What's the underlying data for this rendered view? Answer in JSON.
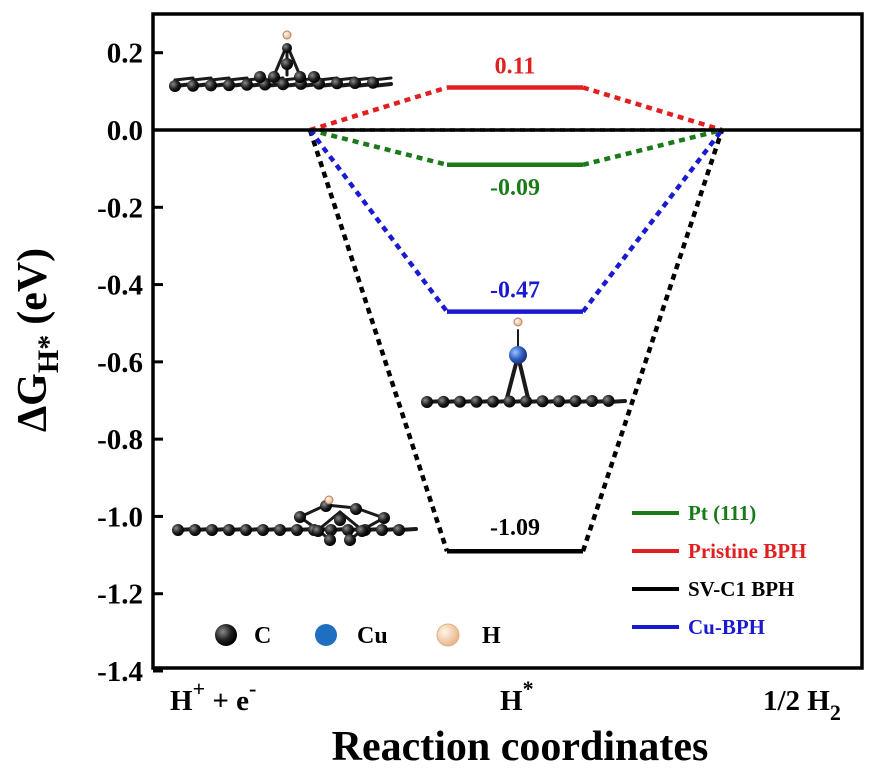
{
  "chart_data": {
    "type": "line",
    "subtype": "free-energy-diagram",
    "ylabel": "ΔG",
    "ylabel_sub": "H*",
    "ylabel_unit": "(eV)",
    "xlabel": "Reaction coordinates",
    "ylim": [
      -1.4,
      0.25
    ],
    "yticks": [
      0.2,
      0.0,
      -0.2,
      -0.4,
      -0.6,
      -0.8,
      -1.0,
      -1.2,
      -1.4
    ],
    "ytick_labels": [
      "0.2",
      "0.0",
      "-0.2",
      "-0.4",
      "-0.6",
      "-0.8",
      "-1.0",
      "-1.2",
      "-1.4"
    ],
    "x_stage_labels": [
      {
        "main": "H",
        "sup": "+",
        "mid": " + e",
        "sup2": "-"
      },
      {
        "main": "H",
        "sup": "*"
      },
      {
        "main": "1/2 H",
        "sub": "2"
      }
    ],
    "series": [
      {
        "name": "Pt (111)",
        "color": "#1a7a1a",
        "values": [
          0,
          -0.09,
          0
        ],
        "label": "-0.09"
      },
      {
        "name": "Pristine BPH",
        "color": "#e02020",
        "values": [
          0,
          0.11,
          0
        ],
        "label": "0.11"
      },
      {
        "name": "SV-C1 BPH",
        "color": "#000000",
        "values": [
          0,
          -1.09,
          0
        ],
        "label": "-1.09"
      },
      {
        "name": "Cu-BPH",
        "color": "#1a1ad0",
        "values": [
          0,
          -0.47,
          0
        ],
        "label": "-0.47"
      }
    ],
    "baseline_color": "#8c8c8c",
    "atom_legend": [
      {
        "symbol": "C",
        "color": "#111111"
      },
      {
        "symbol": "Cu",
        "color": "#1f6fc0"
      },
      {
        "symbol": "H",
        "color": "#f3c9a0"
      }
    ]
  }
}
